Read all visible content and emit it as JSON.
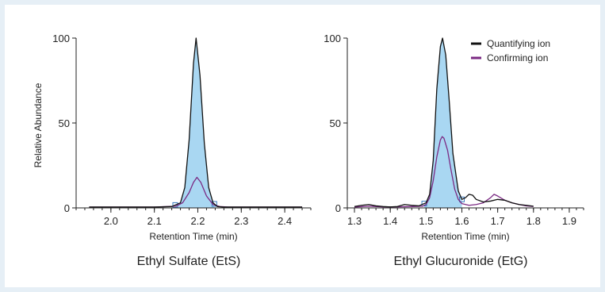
{
  "colors": {
    "quantifying": "#111111",
    "confirming": "#7b2a83",
    "peak_fill": "#a9d7f2",
    "marker": "#3a7bbf",
    "background": "#e6eff6"
  },
  "legend": {
    "placement": "top-right",
    "entries": [
      {
        "label": "Quantifying ion",
        "color": "#111111"
      },
      {
        "label": "Confirming ion",
        "color": "#7b2a83"
      }
    ]
  },
  "y_axis": {
    "label": "Relative Abundance",
    "ticks": [
      0,
      50,
      100
    ],
    "ylim": [
      0,
      100
    ]
  },
  "chart_data": [
    {
      "type": "line",
      "title": "Ethyl Sulfate (EtS)",
      "xlabel": "Retention Time (min)",
      "ylabel": "Relative Abundance",
      "xlim": [
        1.92,
        2.46
      ],
      "ylim": [
        0,
        100
      ],
      "xticks": [
        2.0,
        2.1,
        2.2,
        2.3,
        2.4
      ],
      "xtick_labels": [
        "2.0",
        "2.1",
        "2.2",
        "2.3",
        "2.4"
      ],
      "yticks": [
        0,
        50,
        100
      ],
      "integration": {
        "start": 2.148,
        "end": 2.238
      },
      "series": [
        {
          "role": "quantifying",
          "x": [
            1.95,
            2.1,
            2.14,
            2.16,
            2.17,
            2.18,
            2.19,
            2.196,
            2.205,
            2.215,
            2.225,
            2.235,
            2.245,
            2.26,
            2.3,
            2.44
          ],
          "y": [
            0.5,
            0.5,
            0.8,
            3,
            12,
            40,
            85,
            100,
            78,
            38,
            12,
            3,
            0.8,
            0.5,
            0.5,
            0.5
          ]
        },
        {
          "role": "confirming",
          "x": [
            1.95,
            2.1,
            2.15,
            2.165,
            2.18,
            2.19,
            2.198,
            2.207,
            2.22,
            2.235,
            2.25,
            2.27,
            2.3,
            2.44
          ],
          "y": [
            0.5,
            0.5,
            1,
            3,
            9,
            15,
            18,
            15,
            7,
            2,
            0.8,
            0.5,
            0.5,
            0.5
          ]
        }
      ]
    },
    {
      "type": "line",
      "title": "Ethyl Glucuronide (EtG)",
      "xlabel": "Retention Time (min)",
      "ylabel": "",
      "xlim": [
        1.28,
        1.94
      ],
      "ylim": [
        0,
        100
      ],
      "xticks": [
        1.3,
        1.4,
        1.5,
        1.6,
        1.7,
        1.8,
        1.9
      ],
      "xtick_labels": [
        "1.3",
        "1.4",
        "1.5",
        "1.6",
        "1.7",
        "1.8",
        "1.9"
      ],
      "yticks": [
        0,
        50,
        100
      ],
      "integration": {
        "start": 1.495,
        "end": 1.6
      },
      "series": [
        {
          "role": "quantifying",
          "x": [
            1.3,
            1.32,
            1.34,
            1.36,
            1.38,
            1.4,
            1.42,
            1.44,
            1.46,
            1.48,
            1.5,
            1.51,
            1.52,
            1.53,
            1.54,
            1.546,
            1.555,
            1.565,
            1.575,
            1.59,
            1.6,
            1.61,
            1.62,
            1.63,
            1.64,
            1.66,
            1.68,
            1.7,
            1.72,
            1.74,
            1.76,
            1.78,
            1.8
          ],
          "y": [
            0.8,
            1.5,
            2.0,
            1.2,
            0.8,
            0.6,
            0.8,
            2.0,
            1.5,
            1.2,
            3,
            8,
            28,
            70,
            95,
            100,
            90,
            62,
            32,
            10,
            5,
            6,
            8,
            7.5,
            5,
            3.5,
            4,
            5,
            4.5,
            3,
            2,
            1.5,
            1
          ]
        },
        {
          "role": "confirming",
          "x": [
            1.3,
            1.34,
            1.38,
            1.42,
            1.46,
            1.49,
            1.5,
            1.51,
            1.52,
            1.53,
            1.54,
            1.545,
            1.55,
            1.56,
            1.57,
            1.58,
            1.59,
            1.6,
            1.62,
            1.64,
            1.66,
            1.68,
            1.69,
            1.7,
            1.72,
            1.74,
            1.76,
            1.78,
            1.8
          ],
          "y": [
            0.5,
            1.0,
            0.6,
            0.6,
            0.8,
            1.0,
            2,
            6,
            16,
            30,
            40,
            42,
            41,
            34,
            22,
            11,
            5,
            2.5,
            1.5,
            2,
            3,
            6,
            8,
            7,
            4.5,
            3,
            2,
            1.2,
            0.8
          ]
        }
      ]
    }
  ]
}
